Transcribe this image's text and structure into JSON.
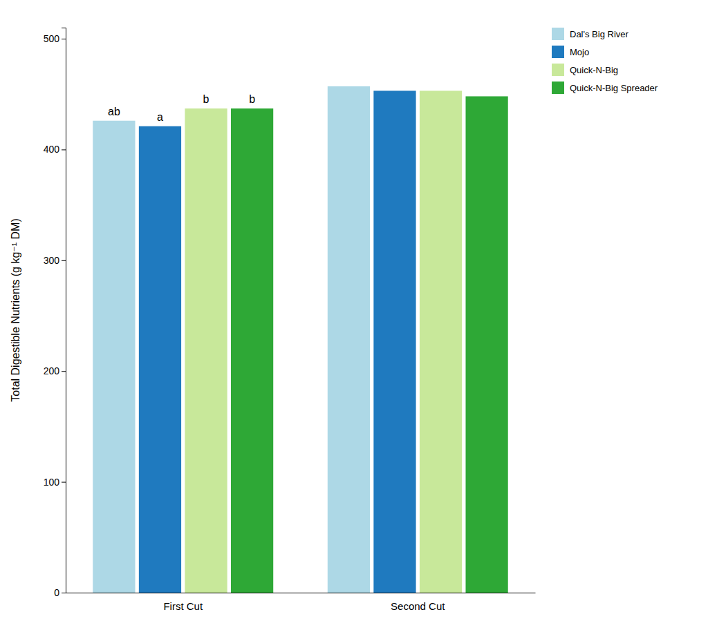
{
  "chart_data": {
    "type": "bar",
    "categories": [
      "First Cut",
      "Second Cut"
    ],
    "series": [
      {
        "name": "Dal's Big River",
        "color": "#add8e6",
        "values": [
          426,
          457
        ],
        "annotations": [
          "ab",
          null
        ]
      },
      {
        "name": "Mojo",
        "color": "#1f7abf",
        "values": [
          421,
          453
        ],
        "annotations": [
          "a",
          null
        ]
      },
      {
        "name": "Quick-N-Big",
        "color": "#c8e89a",
        "values": [
          437,
          453
        ],
        "annotations": [
          "b",
          null
        ]
      },
      {
        "name": "Quick-N-Big Spreader",
        "color": "#2ea836",
        "values": [
          437,
          448
        ],
        "annotations": [
          "b",
          null
        ]
      }
    ],
    "ylabel": "Total Digestible Nutrients (g kg⁻¹ DM)",
    "ylim": [
      0,
      510
    ],
    "yticks": [
      0,
      100,
      200,
      300,
      400,
      500
    ],
    "grid": false,
    "legend": "upper right"
  }
}
